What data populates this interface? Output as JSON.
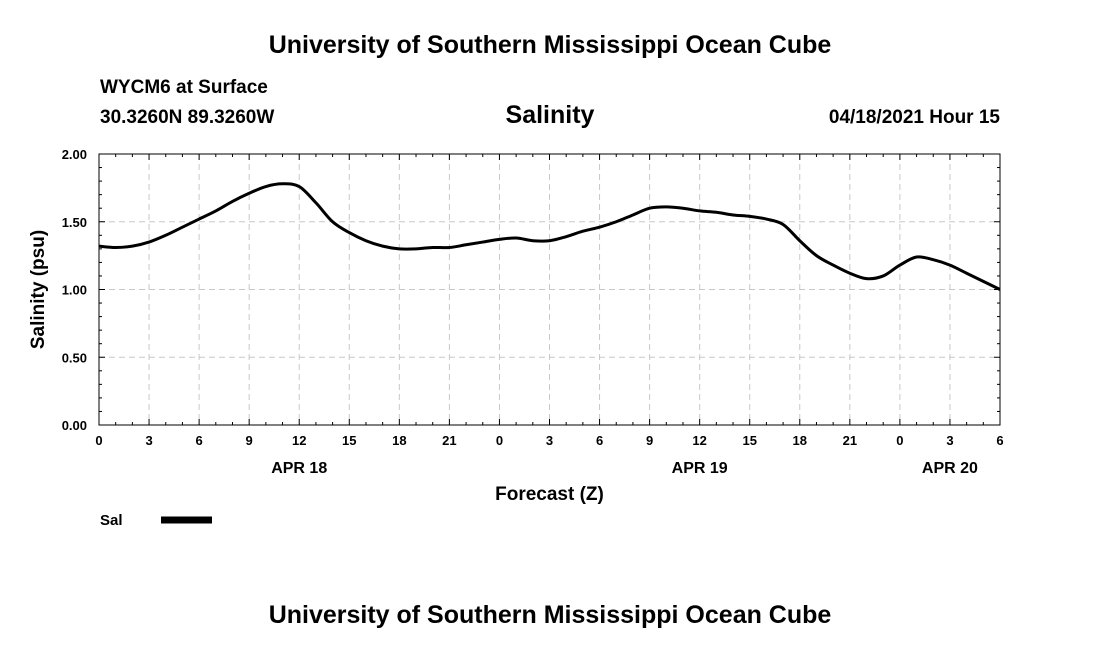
{
  "header": {
    "title_top": "University of Southern Mississippi Ocean Cube",
    "station": "WYCM6 at Surface",
    "location": "30.3260N  89.3260W",
    "variable": "Salinity",
    "valid_time": "04/18/2021 Hour 15"
  },
  "footer": {
    "title_bottom": "University of Southern Mississippi Ocean Cube"
  },
  "chart_data": {
    "type": "line",
    "ylabel": "Salinity (psu)",
    "xlabel": "Forecast (Z)",
    "ylim": [
      0,
      2
    ],
    "yticks": [
      0,
      0.5,
      1.0,
      1.5,
      2.0
    ],
    "ytick_labels": [
      "0.00",
      "0.50",
      "1.00",
      "1.50",
      "2.00"
    ],
    "x_range_hours": [
      0,
      54
    ],
    "xticks_hours": [
      0,
      3,
      6,
      9,
      12,
      15,
      18,
      21,
      24,
      27,
      30,
      33,
      36,
      39,
      42,
      45,
      48,
      51,
      54
    ],
    "xtick_labels": [
      "0",
      "3",
      "6",
      "9",
      "12",
      "15",
      "18",
      "21",
      "0",
      "3",
      "6",
      "9",
      "12",
      "15",
      "18",
      "21",
      "0",
      "3",
      "6"
    ],
    "date_labels": [
      {
        "label": "APR 18",
        "hour": 12
      },
      {
        "label": "APR 19",
        "hour": 36
      },
      {
        "label": "APR 20",
        "hour": 51
      }
    ],
    "grid": true,
    "legend": "bottom-left",
    "series": [
      {
        "name": "Sal",
        "color": "#000000",
        "x_hours": [
          0,
          1,
          2,
          3,
          4,
          5,
          6,
          7,
          8,
          9,
          10,
          11,
          12,
          13,
          14,
          15,
          16,
          17,
          18,
          19,
          20,
          21,
          22,
          23,
          24,
          25,
          26,
          27,
          28,
          29,
          30,
          31,
          32,
          33,
          34,
          35,
          36,
          37,
          38,
          39,
          40,
          41,
          42,
          43,
          44,
          45,
          46,
          47,
          48,
          49,
          50,
          51,
          52,
          53,
          54
        ],
        "values": [
          1.32,
          1.31,
          1.32,
          1.35,
          1.4,
          1.46,
          1.52,
          1.58,
          1.65,
          1.71,
          1.76,
          1.78,
          1.76,
          1.64,
          1.5,
          1.42,
          1.36,
          1.32,
          1.3,
          1.3,
          1.31,
          1.31,
          1.33,
          1.35,
          1.37,
          1.38,
          1.36,
          1.36,
          1.39,
          1.43,
          1.46,
          1.5,
          1.55,
          1.6,
          1.61,
          1.6,
          1.58,
          1.57,
          1.55,
          1.54,
          1.52,
          1.48,
          1.36,
          1.25,
          1.18,
          1.12,
          1.08,
          1.1,
          1.18,
          1.24,
          1.22,
          1.18,
          1.12,
          1.06,
          1.0
        ]
      }
    ]
  }
}
